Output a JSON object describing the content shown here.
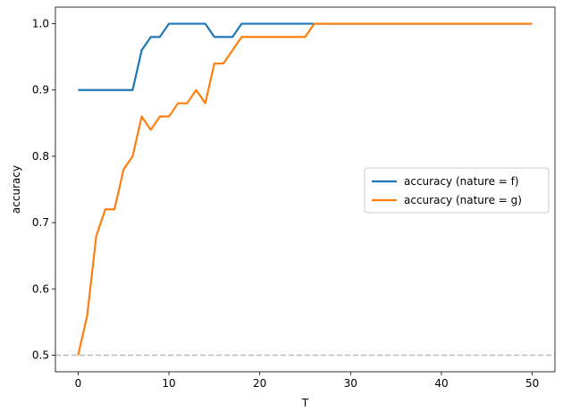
{
  "chart_data": {
    "type": "line",
    "title": "",
    "xlabel": "T",
    "ylabel": "accuracy",
    "xlim": [
      -2.5,
      52.5
    ],
    "ylim": [
      0.475,
      1.025
    ],
    "xticks": [
      0,
      10,
      20,
      30,
      40,
      50
    ],
    "yticks": [
      0.5,
      0.6,
      0.7,
      0.8,
      0.9,
      1.0
    ],
    "xtick_labels": [
      "0",
      "10",
      "20",
      "30",
      "40",
      "50"
    ],
    "ytick_labels": [
      "0.5",
      "0.6",
      "0.7",
      "0.8",
      "0.9",
      "1.0"
    ],
    "grid": false,
    "legend_position": "center-right",
    "x": [
      0,
      1,
      2,
      3,
      4,
      5,
      6,
      7,
      8,
      9,
      10,
      11,
      12,
      13,
      14,
      15,
      16,
      17,
      18,
      19,
      20,
      21,
      22,
      23,
      24,
      25,
      26,
      27,
      28,
      29,
      30,
      31,
      32,
      33,
      34,
      35,
      36,
      37,
      38,
      39,
      40,
      41,
      42,
      43,
      44,
      45,
      46,
      47,
      48,
      49,
      50
    ],
    "series": [
      {
        "name": "accuracy (nature = f)",
        "color": "#1f77b4",
        "values": [
          0.9,
          0.9,
          0.9,
          0.9,
          0.9,
          0.9,
          0.9,
          0.96,
          0.98,
          0.98,
          1.0,
          1.0,
          1.0,
          1.0,
          1.0,
          0.98,
          0.98,
          0.98,
          1.0,
          1.0,
          1.0,
          1.0,
          1.0,
          1.0,
          1.0,
          1.0,
          1.0,
          1.0,
          1.0,
          1.0,
          1.0,
          1.0,
          1.0,
          1.0,
          1.0,
          1.0,
          1.0,
          1.0,
          1.0,
          1.0,
          1.0,
          1.0,
          1.0,
          1.0,
          1.0,
          1.0,
          1.0,
          1.0,
          1.0,
          1.0,
          1.0
        ]
      },
      {
        "name": "accuracy (nature = g)",
        "color": "#ff7f0e",
        "values": [
          0.5,
          0.56,
          0.68,
          0.72,
          0.72,
          0.78,
          0.8,
          0.86,
          0.84,
          0.86,
          0.86,
          0.88,
          0.88,
          0.9,
          0.88,
          0.94,
          0.94,
          0.96,
          0.98,
          0.98,
          0.98,
          0.98,
          0.98,
          0.98,
          0.98,
          0.98,
          1.0,
          1.0,
          1.0,
          1.0,
          1.0,
          1.0,
          1.0,
          1.0,
          1.0,
          1.0,
          1.0,
          1.0,
          1.0,
          1.0,
          1.0,
          1.0,
          1.0,
          1.0,
          1.0,
          1.0,
          1.0,
          1.0,
          1.0,
          1.0,
          1.0
        ]
      }
    ],
    "reference_line": {
      "y": 0.5,
      "color": "#bbbbbb",
      "style": "dashed"
    }
  }
}
